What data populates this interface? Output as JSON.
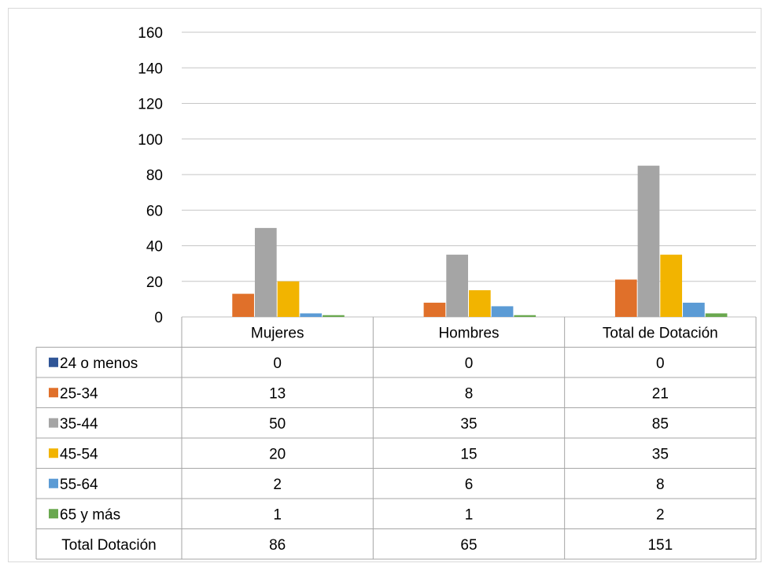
{
  "chart_data": {
    "type": "bar",
    "categories": [
      "Mujeres",
      "Hombres",
      "Total de Dotación"
    ],
    "series": [
      {
        "name": "24 o menos",
        "color": "#2f5597",
        "values": [
          0,
          0,
          0
        ]
      },
      {
        "name": "25-34",
        "color": "#e0702a",
        "values": [
          13,
          8,
          21
        ]
      },
      {
        "name": "35-44",
        "color": "#a5a5a5",
        "values": [
          50,
          35,
          85
        ]
      },
      {
        "name": "45-54",
        "color": "#f2b400",
        "values": [
          20,
          15,
          35
        ]
      },
      {
        "name": "55-64",
        "color": "#5b9bd5",
        "values": [
          2,
          6,
          8
        ]
      },
      {
        "name": "65 y más",
        "color": "#6aa84f",
        "values": [
          1,
          1,
          2
        ]
      }
    ],
    "totals": {
      "label": "Total Dotación",
      "values": [
        86,
        65,
        151
      ]
    },
    "yticks": [
      0,
      20,
      40,
      60,
      80,
      100,
      120,
      140,
      160
    ],
    "ylim": [
      0,
      160
    ],
    "grid": true,
    "legend": "data-table"
  }
}
